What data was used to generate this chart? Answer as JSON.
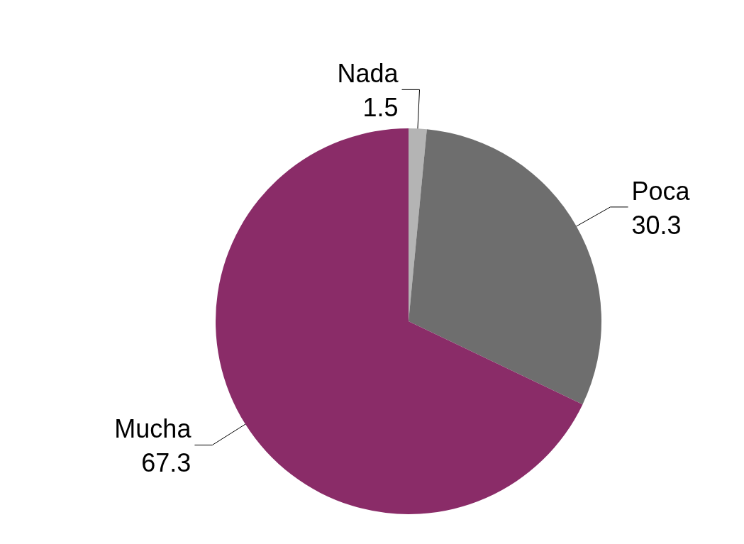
{
  "chart_data": {
    "type": "pie",
    "categories": [
      "Nada",
      "Poca",
      "Mucha"
    ],
    "values": [
      1.5,
      30.3,
      67.3
    ],
    "colors": [
      "#b4b4b4",
      "#6e6e6e",
      "#8a2c68"
    ],
    "data_labels": true,
    "legend": false
  }
}
